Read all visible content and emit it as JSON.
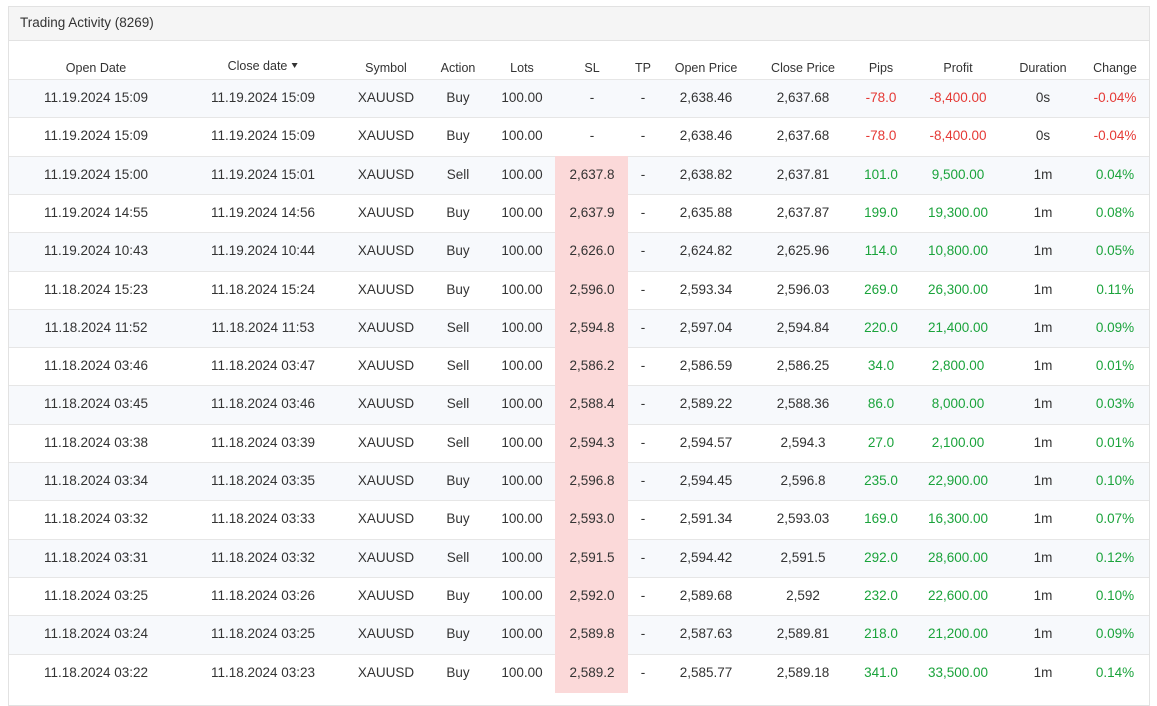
{
  "title": "Trading Activity (8269)",
  "table": {
    "headers": [
      "Open Date",
      "Close date",
      "Symbol",
      "Action",
      "Lots",
      "SL",
      "TP",
      "Open Price",
      "Close Price",
      "Pips",
      "Profit",
      "Duration",
      "Change"
    ],
    "rows": [
      [
        "11.19.2024 15:09",
        "11.19.2024 15:09",
        "XAUUSD",
        "Buy",
        "100.00",
        "-",
        "-",
        "2,638.46",
        "2,637.68",
        "-78.0",
        "-8,400.00",
        "0s",
        "-0.04%"
      ],
      [
        "11.19.2024 15:09",
        "11.19.2024 15:09",
        "XAUUSD",
        "Buy",
        "100.00",
        "-",
        "-",
        "2,638.46",
        "2,637.68",
        "-78.0",
        "-8,400.00",
        "0s",
        "-0.04%"
      ],
      [
        "11.19.2024 15:00",
        "11.19.2024 15:01",
        "XAUUSD",
        "Sell",
        "100.00",
        "2,637.8",
        "-",
        "2,638.82",
        "2,637.81",
        "101.0",
        "9,500.00",
        "1m",
        "0.04%"
      ],
      [
        "11.19.2024 14:55",
        "11.19.2024 14:56",
        "XAUUSD",
        "Buy",
        "100.00",
        "2,637.9",
        "-",
        "2,635.88",
        "2,637.87",
        "199.0",
        "19,300.00",
        "1m",
        "0.08%"
      ],
      [
        "11.19.2024 10:43",
        "11.19.2024 10:44",
        "XAUUSD",
        "Buy",
        "100.00",
        "2,626.0",
        "-",
        "2,624.82",
        "2,625.96",
        "114.0",
        "10,800.00",
        "1m",
        "0.05%"
      ],
      [
        "11.18.2024 15:23",
        "11.18.2024 15:24",
        "XAUUSD",
        "Buy",
        "100.00",
        "2,596.0",
        "-",
        "2,593.34",
        "2,596.03",
        "269.0",
        "26,300.00",
        "1m",
        "0.11%"
      ],
      [
        "11.18.2024 11:52",
        "11.18.2024 11:53",
        "XAUUSD",
        "Sell",
        "100.00",
        "2,594.8",
        "-",
        "2,597.04",
        "2,594.84",
        "220.0",
        "21,400.00",
        "1m",
        "0.09%"
      ],
      [
        "11.18.2024 03:46",
        "11.18.2024 03:47",
        "XAUUSD",
        "Sell",
        "100.00",
        "2,586.2",
        "-",
        "2,586.59",
        "2,586.25",
        "34.0",
        "2,800.00",
        "1m",
        "0.01%"
      ],
      [
        "11.18.2024 03:45",
        "11.18.2024 03:46",
        "XAUUSD",
        "Sell",
        "100.00",
        "2,588.4",
        "-",
        "2,589.22",
        "2,588.36",
        "86.0",
        "8,000.00",
        "1m",
        "0.03%"
      ],
      [
        "11.18.2024 03:38",
        "11.18.2024 03:39",
        "XAUUSD",
        "Sell",
        "100.00",
        "2,594.3",
        "-",
        "2,594.57",
        "2,594.3",
        "27.0",
        "2,100.00",
        "1m",
        "0.01%"
      ],
      [
        "11.18.2024 03:34",
        "11.18.2024 03:35",
        "XAUUSD",
        "Buy",
        "100.00",
        "2,596.8",
        "-",
        "2,594.45",
        "2,596.8",
        "235.0",
        "22,900.00",
        "1m",
        "0.10%"
      ],
      [
        "11.18.2024 03:32",
        "11.18.2024 03:33",
        "XAUUSD",
        "Buy",
        "100.00",
        "2,593.0",
        "-",
        "2,591.34",
        "2,593.03",
        "169.0",
        "16,300.00",
        "1m",
        "0.07%"
      ],
      [
        "11.18.2024 03:31",
        "11.18.2024 03:32",
        "XAUUSD",
        "Sell",
        "100.00",
        "2,591.5",
        "-",
        "2,594.42",
        "2,591.5",
        "292.0",
        "28,600.00",
        "1m",
        "0.12%"
      ],
      [
        "11.18.2024 03:25",
        "11.18.2024 03:26",
        "XAUUSD",
        "Buy",
        "100.00",
        "2,592.0",
        "-",
        "2,589.68",
        "2,592",
        "232.0",
        "22,600.00",
        "1m",
        "0.10%"
      ],
      [
        "11.18.2024 03:24",
        "11.18.2024 03:25",
        "XAUUSD",
        "Buy",
        "100.00",
        "2,589.8",
        "-",
        "2,587.63",
        "2,589.81",
        "218.0",
        "21,200.00",
        "1m",
        "0.09%"
      ],
      [
        "11.18.2024 03:22",
        "11.18.2024 03:23",
        "XAUUSD",
        "Buy",
        "100.00",
        "2,589.2",
        "-",
        "2,585.77",
        "2,589.18",
        "341.0",
        "33,500.00",
        "1m",
        "0.14%"
      ]
    ]
  }
}
